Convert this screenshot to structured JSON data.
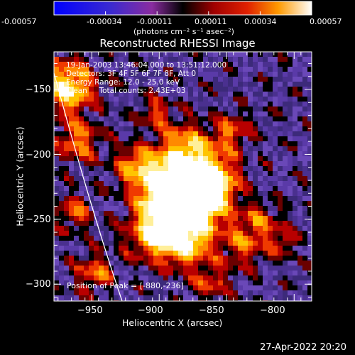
{
  "colorbar": {
    "tick_labels": [
      "-0.00057",
      "-0.00034",
      "-0.00011",
      "0.00011",
      "0.00034",
      "0.00057"
    ],
    "min": -0.00057,
    "max": 0.00057,
    "unit_label": "(photons cm⁻² s⁻¹ asec⁻²)"
  },
  "chart_data": {
    "type": "heatmap",
    "title": "Reconstructed RHESSI Image",
    "xlabel": "Heliocentric X (arcsec)",
    "ylabel": "Heliocentric Y (arcsec)",
    "xlim": [
      -978,
      -787
    ],
    "ylim": [
      -313,
      -121
    ],
    "xticks": [
      -950,
      -900,
      -850,
      -800
    ],
    "yticks": [
      -150,
      -200,
      -250,
      -300
    ],
    "xtick_labels": [
      "−950",
      "−900",
      "−850",
      "−800"
    ],
    "ytick_labels": [
      "−150",
      "−200",
      "−250",
      "−300"
    ],
    "annotations": [
      "19-Jan-2003 13:46:04.000 to 13:51:12.000",
      "Detectors: 3F 4F 5F 6F 7F 8F, Att 0",
      "Energy Range: 12.0 - 25.0 keV",
      "Clean     Total counts: 2.43E+03"
    ],
    "peak_label": "Position of Peak = [-880,-236]",
    "peak": [
      -880,
      -236
    ]
  },
  "timestamp": "27-Apr-2022 20:20"
}
